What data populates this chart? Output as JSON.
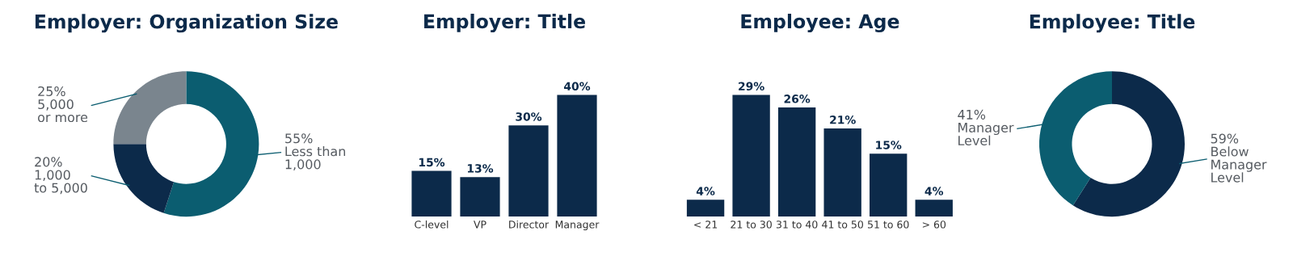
{
  "chart_data": [
    {
      "type": "donut",
      "title": "Employer: Organization Size",
      "categories": [
        "Less than\n1,000",
        "1,000\nto 5,000",
        "5,000\nor more"
      ],
      "values": [
        55,
        20,
        25
      ],
      "colors": [
        "#0b5d70",
        "#0c2a4a",
        "#7a858e"
      ],
      "value_labels": [
        "55%",
        "20%",
        "25%"
      ]
    },
    {
      "type": "bar",
      "title": "Employer: Title",
      "categories": [
        "C-level",
        "VP",
        "Director",
        "Manager"
      ],
      "values": [
        15,
        13,
        30,
        40
      ],
      "color": "#0c2a4a",
      "value_labels": [
        "15%",
        "13%",
        "30%",
        "40%"
      ]
    },
    {
      "type": "bar",
      "title": "Employee: Age",
      "categories": [
        "< 21",
        "21 to 30",
        "31 to 40",
        "41 to 50",
        "51 to 60",
        "> 60"
      ],
      "values": [
        4,
        29,
        26,
        21,
        15,
        4
      ],
      "color": "#0c2a4a",
      "value_labels": [
        "4%",
        "29%",
        "26%",
        "21%",
        "15%",
        "4%"
      ]
    },
    {
      "type": "donut",
      "title": "Employee: Title",
      "categories": [
        "Below\nManager\nLevel",
        "Manager\nLevel"
      ],
      "values": [
        59,
        41
      ],
      "colors": [
        "#0c2a4a",
        "#0b5d70"
      ],
      "value_labels": [
        "59%",
        "41%"
      ]
    }
  ]
}
